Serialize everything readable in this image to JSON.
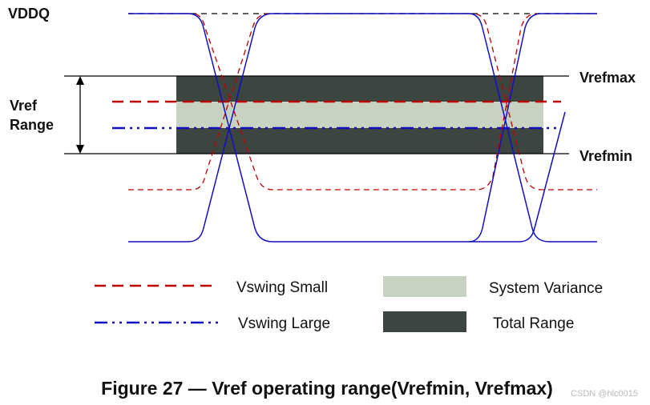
{
  "labels": {
    "vddq": "VDDQ",
    "vref_range": [
      "Vref",
      "Range"
    ],
    "vrefmax": "Vrefmax",
    "vrefmin": "Vrefmin"
  },
  "legend": {
    "vswing_small": "Vswing Small",
    "vswing_large": "Vswing Large",
    "system_variance": "System Variance",
    "total_range": "Total Range"
  },
  "caption": "Figure 27 — Vref operating range(Vrefmin, Vrefmax)",
  "watermark": "CSDN @hlc0015"
}
